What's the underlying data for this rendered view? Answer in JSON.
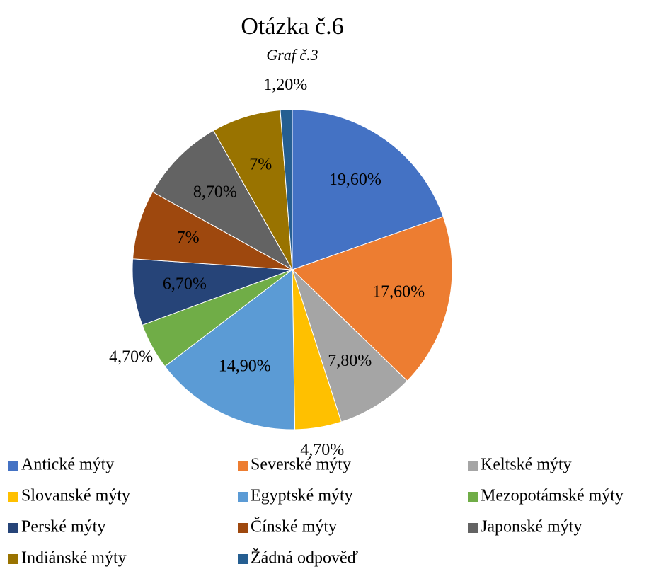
{
  "chart_data": {
    "type": "pie",
    "title": "Otázka č.6",
    "subtitle": "Graf č.3",
    "categories": [
      "Antické mýty",
      "Severské mýty",
      "Keltské mýty",
      "Slovanské mýty",
      "Egyptské mýty",
      "Mezopotámské mýty",
      "Perské mýty",
      "Čínské mýty",
      "Japonské mýty",
      "Indiánské mýty",
      "Žádná odpověď"
    ],
    "values": [
      19.6,
      17.6,
      7.8,
      4.7,
      14.9,
      4.7,
      6.7,
      7,
      8.7,
      7,
      1.2
    ],
    "value_labels": [
      "19,60%",
      "17,60%",
      "7,80%",
      "4,70%",
      "14,90%",
      "4,70%",
      "6,70%",
      "7%",
      "8,70%",
      "7%",
      "1,20%"
    ],
    "colors": [
      "#4472c4",
      "#ed7d31",
      "#a5a5a5",
      "#ffc000",
      "#5b9bd5",
      "#70ad47",
      "#264478",
      "#9e480e",
      "#636363",
      "#997300",
      "#255e91"
    ],
    "legend": "bottom"
  }
}
